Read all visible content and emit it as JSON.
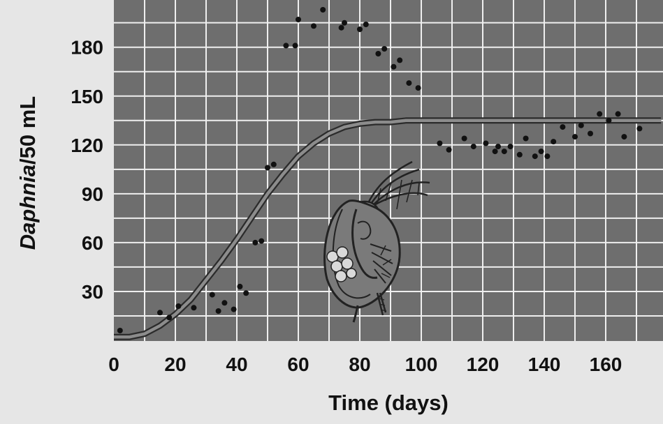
{
  "chart_data": {
    "type": "scatter",
    "title": "",
    "xlabel": "Time (days)",
    "ylabel_italic": "Daphnia",
    "ylabel_rest": "/50 mL",
    "xlim": [
      0,
      178
    ],
    "ylim": [
      0,
      210
    ],
    "x_ticks": [
      0,
      20,
      40,
      60,
      80,
      100,
      120,
      140,
      160
    ],
    "y_ticks": [
      30,
      60,
      90,
      120,
      150,
      180
    ],
    "x_tick_labels": [
      "0",
      "20",
      "40",
      "60",
      "80",
      "100",
      "120",
      "140",
      "160"
    ],
    "y_tick_labels": [
      "30",
      "60",
      "90",
      "120",
      "150",
      "180"
    ],
    "grid": true,
    "colors": {
      "plot_background": "#6e6e6e",
      "gridline": "#efefef",
      "points": "#111111",
      "curve": "#5a5a5a",
      "page_background": "#e6e6e6"
    },
    "series": [
      {
        "type": "scatter",
        "x": [
          2,
          15,
          18,
          21,
          26,
          32,
          34,
          36,
          39,
          41,
          43,
          46,
          48,
          50,
          52,
          56,
          59,
          60,
          65,
          68,
          74,
          75,
          80,
          82,
          86,
          88,
          91,
          93,
          96,
          99,
          106,
          109,
          114,
          117,
          121,
          124,
          125,
          127,
          129,
          132,
          134,
          137,
          139,
          141,
          143,
          146,
          150,
          152,
          155,
          158,
          161,
          164,
          166,
          171
        ],
        "y": [
          6,
          17,
          14,
          21,
          20,
          28,
          18,
          23,
          19,
          33,
          29,
          60,
          61,
          106,
          108,
          181,
          181,
          197,
          193,
          203,
          192,
          195,
          191,
          194,
          176,
          179,
          168,
          172,
          158,
          155,
          121,
          117,
          124,
          119,
          121,
          116,
          119,
          116,
          119,
          114,
          124,
          113,
          116,
          113,
          122,
          131,
          125,
          132,
          127,
          139,
          135,
          139,
          125,
          130
        ]
      },
      {
        "type": "line",
        "style": "logistic curve",
        "x": [
          0,
          5,
          10,
          15,
          20,
          25,
          30,
          35,
          40,
          45,
          50,
          55,
          60,
          65,
          70,
          75,
          80,
          85,
          90,
          95,
          100,
          110,
          120,
          130,
          140,
          150,
          160,
          170,
          178
        ],
        "y": [
          2,
          2,
          4,
          9,
          16,
          25,
          37,
          49,
          62,
          76,
          90,
          102,
          113,
          121,
          127,
          131,
          133,
          134,
          134,
          135,
          135,
          135,
          135,
          135,
          135,
          135,
          135,
          135,
          135
        ]
      }
    ]
  },
  "illustration": {
    "subject": "daphnia-icon"
  }
}
